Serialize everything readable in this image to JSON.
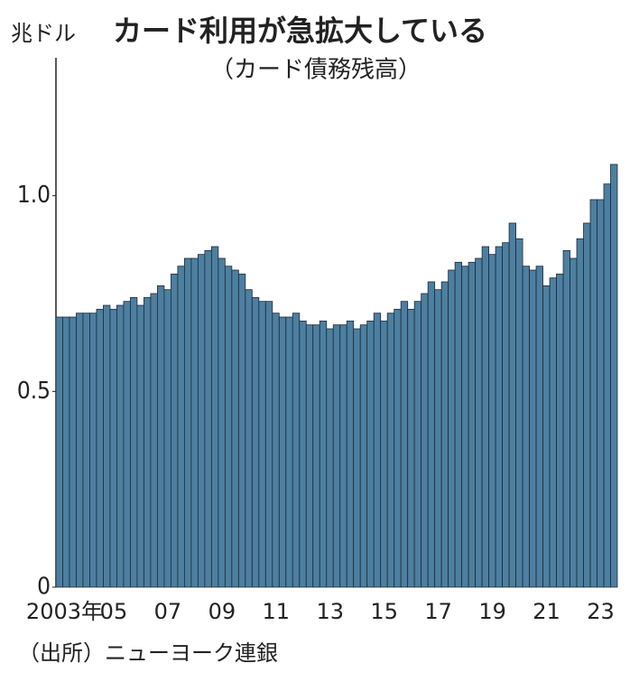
{
  "chart_data": {
    "type": "bar",
    "title": "カード利用が急拡大している",
    "subtitle": "（カード債務残高）",
    "unit_label": "兆ドル",
    "source": "（出所）ニューヨーク連銀",
    "color": "#4d7fa0",
    "categories": [
      "2003年",
      null,
      null,
      null,
      null,
      null,
      null,
      null,
      "05",
      null,
      null,
      null,
      null,
      null,
      null,
      null,
      "07",
      null,
      null,
      null,
      null,
      null,
      null,
      null,
      "09",
      null,
      null,
      null,
      null,
      null,
      null,
      null,
      "11",
      null,
      null,
      null,
      null,
      null,
      null,
      null,
      "13",
      null,
      null,
      null,
      null,
      null,
      null,
      null,
      "15",
      null,
      null,
      null,
      null,
      null,
      null,
      null,
      "17",
      null,
      null,
      null,
      null,
      null,
      null,
      null,
      "19",
      null,
      null,
      null,
      null,
      null,
      null,
      null,
      "21",
      null,
      null,
      null,
      null,
      null,
      null,
      null,
      "23",
      null,
      null
    ],
    "values": [
      0.69,
      0.69,
      0.69,
      0.7,
      0.7,
      0.7,
      0.71,
      0.72,
      0.71,
      0.72,
      0.73,
      0.74,
      0.72,
      0.74,
      0.75,
      0.77,
      0.76,
      0.8,
      0.82,
      0.84,
      0.84,
      0.85,
      0.86,
      0.87,
      0.84,
      0.82,
      0.81,
      0.8,
      0.76,
      0.74,
      0.73,
      0.73,
      0.7,
      0.69,
      0.69,
      0.7,
      0.68,
      0.67,
      0.67,
      0.68,
      0.66,
      0.67,
      0.67,
      0.68,
      0.66,
      0.67,
      0.68,
      0.7,
      0.68,
      0.7,
      0.71,
      0.73,
      0.71,
      0.73,
      0.75,
      0.78,
      0.76,
      0.78,
      0.81,
      0.83,
      0.82,
      0.83,
      0.84,
      0.87,
      0.85,
      0.87,
      0.88,
      0.93,
      0.89,
      0.82,
      0.81,
      0.82,
      0.77,
      0.79,
      0.8,
      0.86,
      0.84,
      0.89,
      0.93,
      0.99,
      0.99,
      1.03,
      1.08
    ],
    "ylim": [
      0,
      1.35
    ],
    "yticks": [
      0,
      0.5,
      {
        "value": 1,
        "label": "1.0"
      }
    ]
  }
}
